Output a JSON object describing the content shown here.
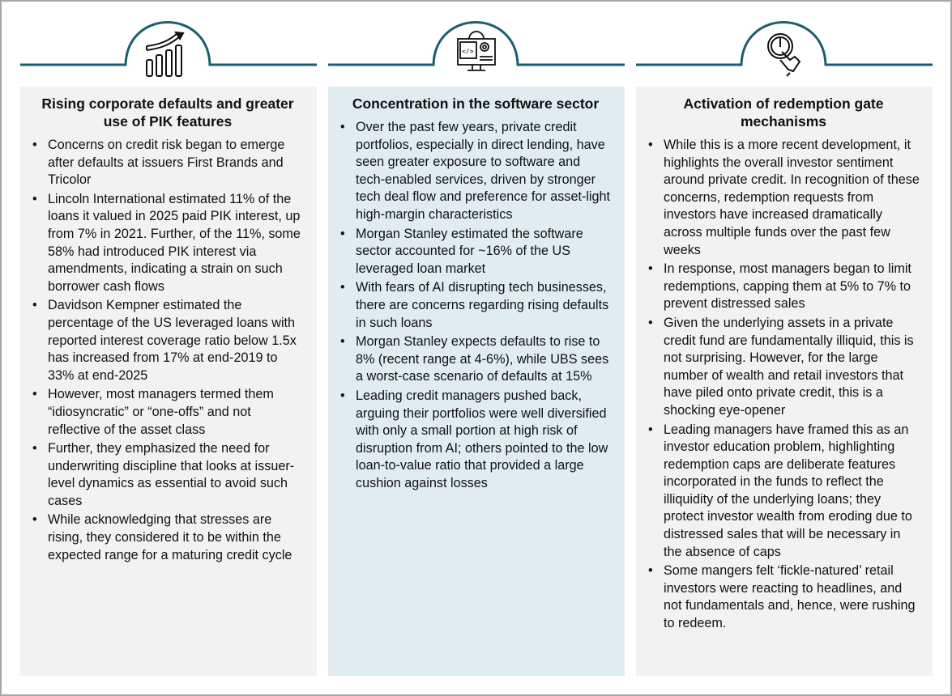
{
  "colors": {
    "accent": "#1b5e70",
    "panel_grey": "#f2f2f2",
    "panel_blue": "#e1ecf0"
  },
  "columns": [
    {
      "icon": "bar-chart-growth-icon",
      "title": "Rising corporate defaults and greater use of PIK features",
      "bullets": [
        "Concerns on credit risk began to emerge after defaults at issuers First Brands and Tricolor",
        "Lincoln International estimated 11% of the loans it valued in 2025 paid PIK interest, up from 7% in 2021. Further, of the 11%, some 58% had introduced PIK interest via amendments, indicating a strain on such borrower cash flows",
        "Davidson Kempner estimated the percentage of the US leveraged loans with reported interest coverage ratio below 1.5x has increased from 17% at end-2019 to 33% at end-2025",
        "However, most managers termed them “idiosyncratic” or “one-offs” and not reflective of the asset class",
        "Further, they emphasized the need for underwriting discipline that looks at issuer-level dynamics as essential to avoid such cases",
        "While acknowledging that stresses are rising, they considered it to be within the expected range for a maturing credit cycle"
      ]
    },
    {
      "icon": "software-monitor-gear-icon",
      "title": "Concentration in the software sector",
      "bullets": [
        "Over the past few years, private credit portfolios, especially in direct lending, have seen greater exposure to software and tech-enabled services, driven by stronger tech deal flow and preference for asset-light high-margin characteristics",
        "Morgan Stanley estimated the software sector accounted for ~16% of the US leveraged loan market",
        "With fears of AI disrupting tech businesses, there are concerns regarding rising defaults in such loans",
        "Morgan Stanley expects defaults to rise to 8% (recent range at 4-6%), while UBS sees a worst-case scenario of defaults at 15%",
        "Leading credit managers pushed back, arguing their portfolios were well diversified with only a small portion at high risk of disruption from AI; others pointed to the low loan-to-value ratio that provided a large cushion against losses"
      ]
    },
    {
      "icon": "hand-power-button-icon",
      "title": "Activation of redemption gate mechanisms",
      "bullets": [
        "While this is a more recent development, it highlights the overall investor sentiment around private credit. In recognition of these concerns, redemption requests from investors have increased dramatically across multiple funds over the past few weeks",
        "In response, most managers began to limit redemptions, capping them at 5% to 7% to prevent distressed sales",
        "Given the underlying assets in a private credit fund are fundamentally illiquid, this is not surprising. However, for the large number of wealth and retail investors that have piled onto private credit, this is a shocking eye-opener",
        "Leading managers have framed this as an investor education problem, highlighting redemption caps are deliberate features incorporated in the funds to reflect the illiquidity of the underlying loans; they protect investor wealth from eroding due to distressed sales that will be necessary in the absence of caps",
        "Some mangers felt ‘fickle-natured’ retail investors were reacting to headlines, and not fundamentals and, hence, were rushing to redeem."
      ]
    }
  ]
}
